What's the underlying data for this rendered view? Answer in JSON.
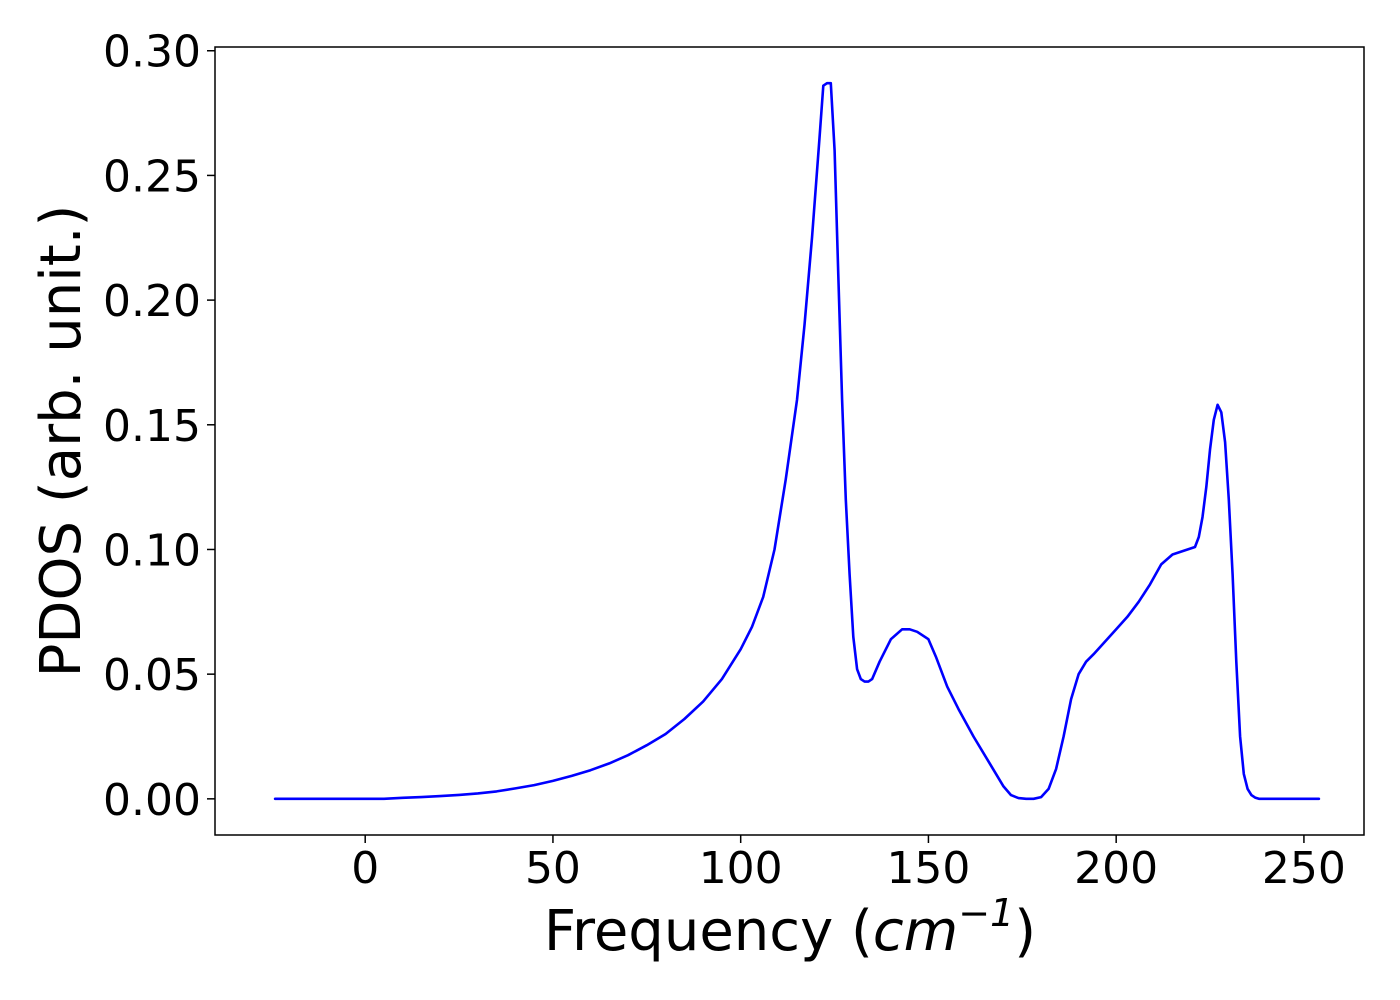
{
  "chart_data": {
    "type": "line",
    "title": "",
    "xlabel": {
      "prefix": "Frequency (",
      "unit_base": "cm",
      "unit_exponent": "−1",
      "suffix": ")"
    },
    "ylabel": "PDOS (arb. unit.)",
    "xlim": [
      -40,
      266
    ],
    "ylim": [
      -0.0145,
      0.3015
    ],
    "xticks": [
      0,
      50,
      100,
      150,
      200,
      250
    ],
    "xtick_labels": [
      "0",
      "50",
      "100",
      "150",
      "200",
      "250"
    ],
    "yticks": [
      0.0,
      0.05,
      0.1,
      0.15,
      0.2,
      0.25,
      0.3
    ],
    "ytick_labels": [
      "0.00",
      "0.05",
      "0.10",
      "0.15",
      "0.20",
      "0.25",
      "0.30"
    ],
    "grid": false,
    "series": [
      {
        "color": "#0000ff",
        "x": [
          -24,
          -10,
          0,
          5,
          10,
          15,
          20,
          25,
          30,
          35,
          40,
          45,
          50,
          55,
          60,
          65,
          70,
          75,
          80,
          85,
          90,
          95,
          100,
          103,
          106,
          109,
          112,
          115,
          117,
          119,
          121,
          122,
          123,
          124,
          125,
          126,
          127,
          128,
          129,
          130,
          131,
          132,
          133,
          134,
          135,
          137,
          140,
          143,
          145,
          147,
          150,
          152,
          155,
          158,
          162,
          166,
          170,
          172,
          174,
          176,
          178,
          180,
          182,
          184,
          186,
          188,
          190,
          192,
          194,
          197,
          200,
          203,
          206,
          209,
          212,
          215,
          217,
          219,
          221,
          222,
          223,
          224,
          225,
          226,
          227,
          228,
          229,
          230,
          231,
          232,
          233,
          234,
          235,
          236,
          237,
          238,
          240,
          245,
          250,
          254
        ],
        "y": [
          0.0,
          0.0,
          0.0,
          0.0,
          0.0004,
          0.0007,
          0.0011,
          0.0016,
          0.0022,
          0.003,
          0.0042,
          0.0055,
          0.0072,
          0.0092,
          0.0115,
          0.0142,
          0.0175,
          0.0215,
          0.026,
          0.032,
          0.039,
          0.048,
          0.06,
          0.069,
          0.081,
          0.1,
          0.128,
          0.16,
          0.19,
          0.225,
          0.265,
          0.286,
          0.287,
          0.287,
          0.26,
          0.21,
          0.16,
          0.12,
          0.09,
          0.065,
          0.052,
          0.048,
          0.047,
          0.047,
          0.048,
          0.055,
          0.064,
          0.068,
          0.068,
          0.067,
          0.064,
          0.057,
          0.045,
          0.036,
          0.025,
          0.015,
          0.005,
          0.0015,
          0.0003,
          0.0,
          0.0,
          0.0007,
          0.004,
          0.012,
          0.025,
          0.04,
          0.05,
          0.055,
          0.058,
          0.063,
          0.068,
          0.073,
          0.079,
          0.086,
          0.094,
          0.098,
          0.099,
          0.1,
          0.101,
          0.105,
          0.113,
          0.125,
          0.14,
          0.152,
          0.158,
          0.155,
          0.143,
          0.12,
          0.09,
          0.055,
          0.025,
          0.01,
          0.004,
          0.0015,
          0.0005,
          0.0,
          0.0,
          0.0,
          0.0,
          0.0
        ]
      }
    ]
  }
}
